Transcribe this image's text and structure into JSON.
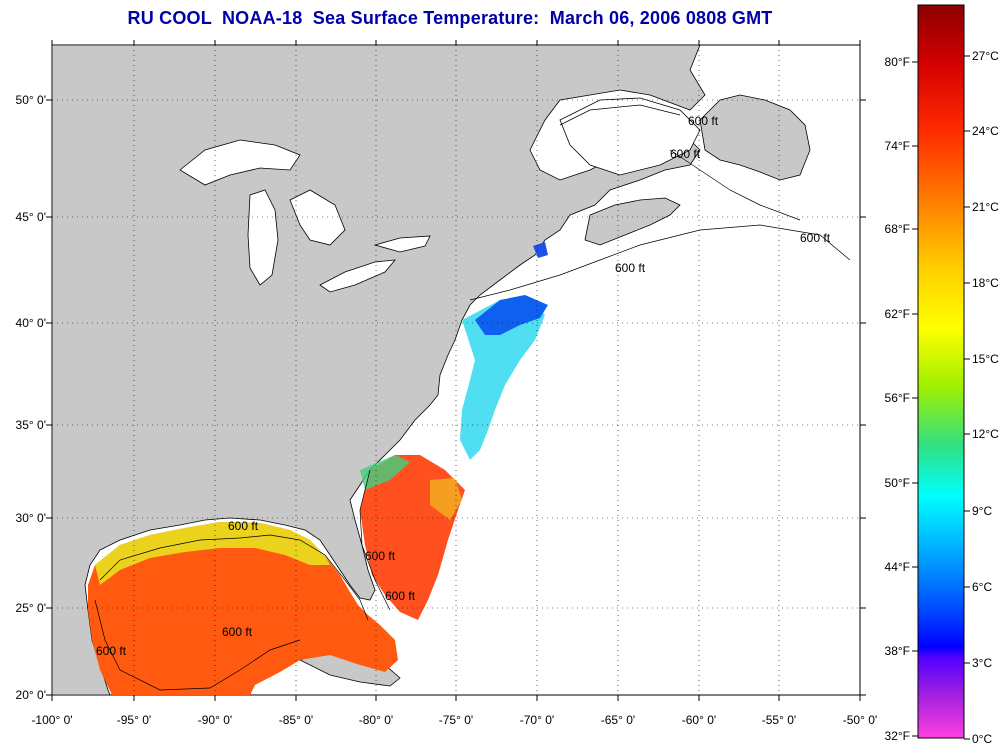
{
  "title": "RU COOL  NOAA-18  Sea Surface Temperature:  March 06, 2006 0808 GMT",
  "map": {
    "lon_labels": [
      "-100° 0'",
      "-95° 0'",
      "-90° 0'",
      "-85° 0'",
      "-80° 0'",
      "-75° 0'",
      "-70° 0'",
      "-65° 0'",
      "-60° 0'",
      "-55° 0'",
      "-50° 0'"
    ],
    "lat_labels": [
      "50° 0'",
      "45° 0'",
      "40° 0'",
      "35° 0'",
      "30° 0'",
      "25° 0'",
      "20° 0'"
    ],
    "contour_labels": [
      "600 ft",
      "600 ft",
      "600 ft",
      "600 ft",
      "600 ft",
      "600 ft",
      "600 ft",
      "600 ft",
      "600 ft"
    ],
    "colors": {
      "land": "#c8c8c8",
      "ocean": "#ffffff",
      "coast": "#000000",
      "grid": "#000000"
    }
  },
  "colorbar": {
    "fahrenheit_labels": [
      "80°F",
      "74°F",
      "68°F",
      "62°F",
      "56°F",
      "50°F",
      "44°F",
      "38°F",
      "32°F"
    ],
    "celsius_labels": [
      "27°C",
      "24°C",
      "21°C",
      "18°C",
      "15°C",
      "12°C",
      "9°C",
      "6°C",
      "3°C",
      "0°C"
    ],
    "gradient_colors": [
      "#8b0000",
      "#d40000",
      "#ff2a00",
      "#ff6a00",
      "#ffa000",
      "#ffd000",
      "#ffff00",
      "#b0f000",
      "#40e040",
      "#00e0a0",
      "#00ffff",
      "#00a0ff",
      "#0040ff",
      "#0000ff",
      "#8000ff",
      "#ff40e0"
    ]
  }
}
